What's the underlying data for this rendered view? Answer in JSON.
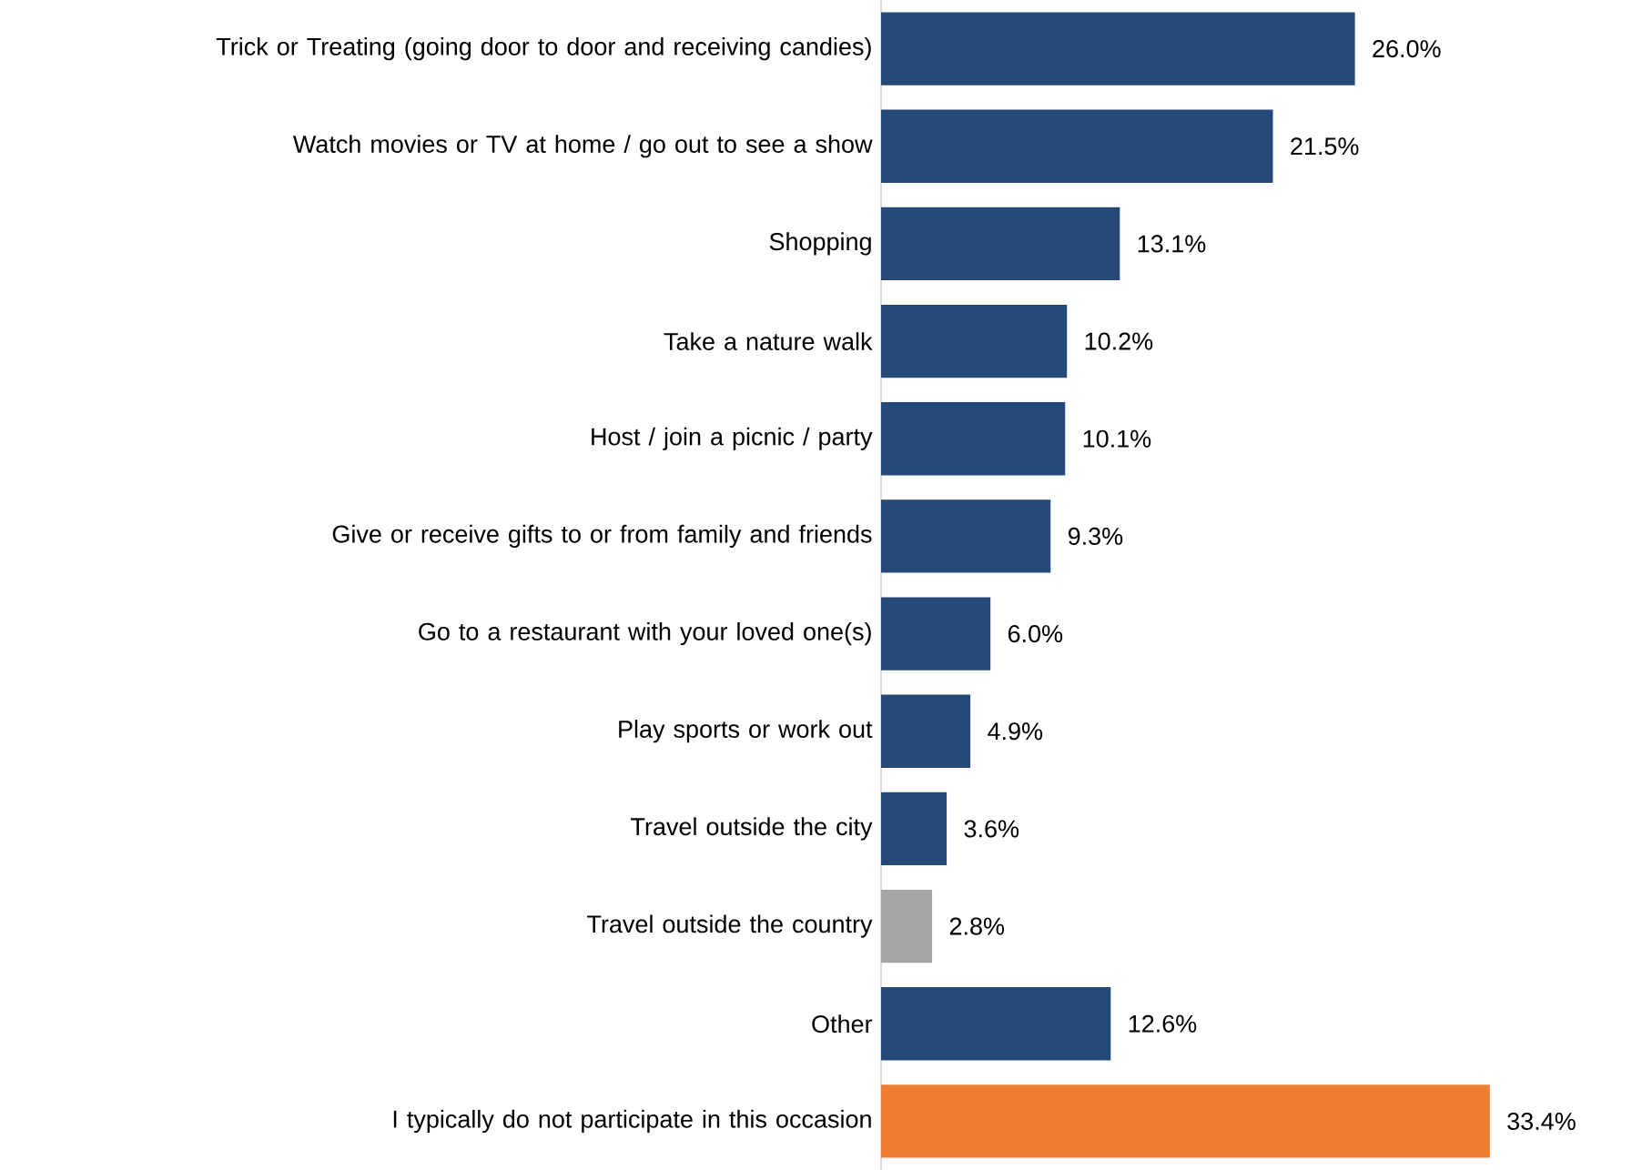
{
  "chart_data": {
    "type": "bar",
    "orientation": "horizontal",
    "categories": [
      "Trick or Treating (going door to door and receiving candies)",
      "Watch movies or TV at home / go out to see a show",
      "Shopping",
      "Take a nature walk",
      "Host / join a picnic / party",
      "Give or receive gifts to or from family and friends",
      "Go to a restaurant with your loved one(s)",
      "Play sports or work out",
      "Travel outside the city",
      "Travel outside the country",
      "Other",
      "I typically do not participate in this occasion"
    ],
    "values": [
      26.0,
      21.5,
      13.1,
      10.2,
      10.1,
      9.3,
      6.0,
      4.9,
      3.6,
      2.8,
      12.6,
      33.4
    ],
    "colors": [
      "#254a77",
      "#254a77",
      "#254a77",
      "#254a77",
      "#254a77",
      "#254a77",
      "#254a77",
      "#254a77",
      "#254a77",
      "#a6a6a6",
      "#254a77",
      "#ed7d31"
    ],
    "value_labels": [
      "26.0%",
      "21.5%",
      "13.1%",
      "10.2%",
      "10.1%",
      "9.3%",
      "6.0%",
      "4.9%",
      "3.6%",
      "2.8%",
      "12.6%",
      "33.4%"
    ]
  }
}
